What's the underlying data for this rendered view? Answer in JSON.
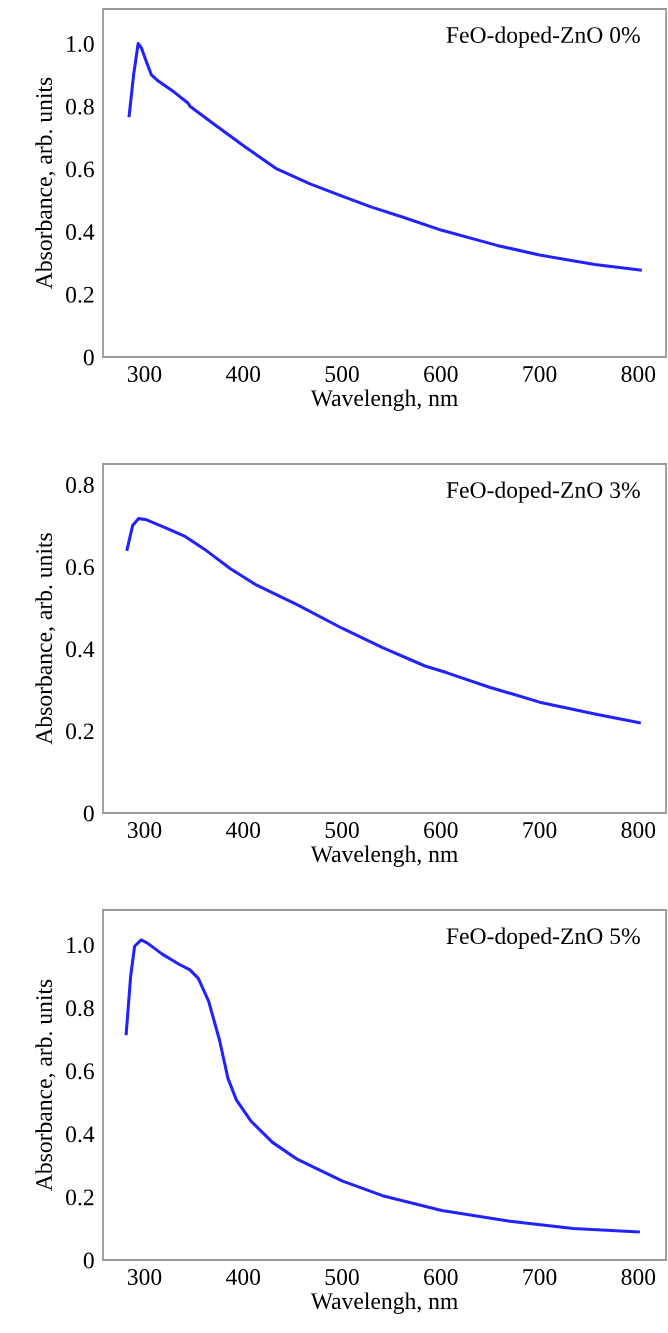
{
  "chart_data": [
    {
      "type": "line",
      "xlabel": "Wavelengh, nm",
      "ylabel": "Absorbance, arb. units",
      "annotations": [
        "FeO-doped-ZnO 0%"
      ],
      "xlim": [
        258,
        828
      ],
      "xticks": [
        300,
        400,
        500,
        600,
        700,
        800
      ],
      "ylim": [
        0,
        1.11
      ],
      "yticks": [
        0,
        {
          "value": 0.2,
          "label": "0.2"
        },
        {
          "value": 0.4,
          "label": "0.4"
        },
        {
          "value": 0.6,
          "label": "0.6"
        },
        {
          "value": 0.8,
          "label": "0.8"
        },
        {
          "value": 1.0,
          "label": "1.0"
        }
      ],
      "series": [
        {
          "color": "#2222ff",
          "x": [
            284.5,
            289,
            293.6,
            297,
            301,
            307,
            314,
            330,
            344,
            346,
            369.5,
            402,
            434,
            467,
            500,
            530,
            562.6,
            601,
            657,
            700,
            756,
            802
          ],
          "values": [
            0.77,
            0.9,
            1.0,
            0.985,
            0.95,
            0.9,
            0.88,
            0.845,
            0.81,
            0.8,
            0.745,
            0.67,
            0.6,
            0.553,
            0.513,
            0.478,
            0.445,
            0.404,
            0.356,
            0.325,
            0.295,
            0.277
          ]
        }
      ]
    },
    {
      "type": "line",
      "xlabel": "Wavelengh, nm",
      "ylabel": "Absorbance, arb. units",
      "annotations": [
        "FeO-doped-ZnO 3%"
      ],
      "xlim": [
        258,
        828
      ],
      "xticks": [
        300,
        400,
        500,
        600,
        700,
        800
      ],
      "ylim": [
        0,
        0.85
      ],
      "yticks": [
        0,
        {
          "value": 0.2,
          "label": "0.2"
        },
        {
          "value": 0.4,
          "label": "0.4"
        },
        {
          "value": 0.6,
          "label": "0.6"
        },
        {
          "value": 0.8,
          "label": "0.8"
        }
      ],
      "series": [
        {
          "color": "#2222ff",
          "x": [
            282.4,
            288,
            294,
            301,
            322,
            341.6,
            361,
            387,
            412,
            455,
            500,
            541,
            584,
            605.6,
            648.5,
            700,
            756,
            801
          ],
          "values": [
            0.642,
            0.7,
            0.717,
            0.715,
            0.694,
            0.673,
            0.642,
            0.595,
            0.557,
            0.507,
            0.45,
            0.403,
            0.358,
            0.342,
            0.307,
            0.27,
            0.241,
            0.22
          ]
        }
      ]
    },
    {
      "type": "line",
      "xlabel": "Wavelengh, nm",
      "ylabel": "Absorbance, arb. units",
      "annotations": [
        "FeO-doped-ZnO 5%"
      ],
      "xlim": [
        258,
        828
      ],
      "xticks": [
        300,
        400,
        500,
        600,
        700,
        800
      ],
      "ylim": [
        0,
        1.11
      ],
      "yticks": [
        0,
        {
          "value": 0.2,
          "label": "0.2"
        },
        {
          "value": 0.4,
          "label": "0.4"
        },
        {
          "value": 0.6,
          "label": "0.6"
        },
        {
          "value": 0.8,
          "label": "0.8"
        },
        {
          "value": 1.0,
          "label": "1.0"
        }
      ],
      "series": [
        {
          "color": "#2222ff",
          "x": [
            281.5,
            286,
            290,
            296.6,
            303,
            318,
            335,
            346,
            354.5,
            365,
            376,
            384.5,
            393,
            408,
            429.6,
            455,
            500,
            541,
            601,
            670,
            734,
            800
          ],
          "values": [
            0.718,
            0.9,
            0.995,
            1.015,
            1.005,
            0.97,
            0.938,
            0.92,
            0.893,
            0.82,
            0.697,
            0.576,
            0.508,
            0.44,
            0.373,
            0.319,
            0.251,
            0.204,
            0.157,
            0.123,
            0.1,
            0.089
          ]
        }
      ]
    }
  ]
}
